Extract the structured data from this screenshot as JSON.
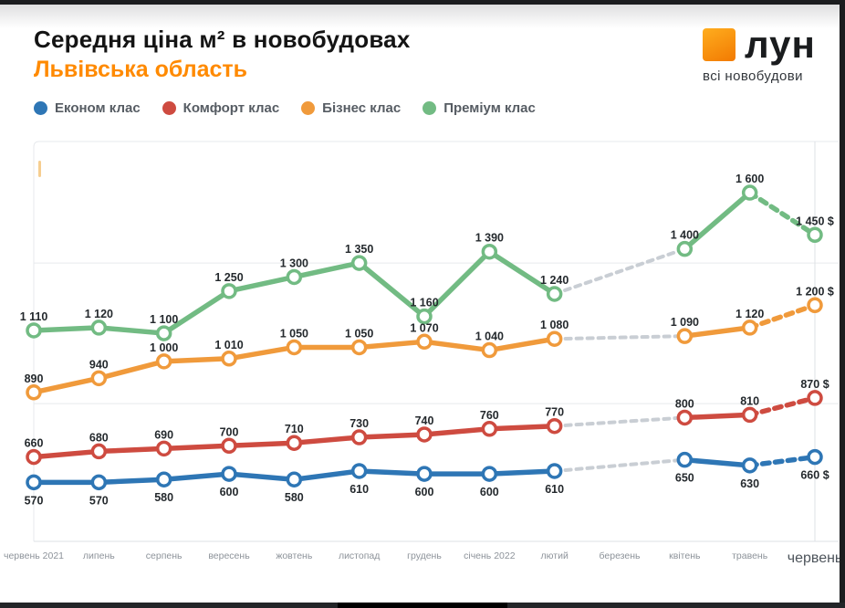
{
  "header": {
    "title": "Середня ціна м² в новобудовах",
    "subtitle": "Львівська область",
    "subtitle_color": "#FF8A00"
  },
  "logo": {
    "name": "лун",
    "tagline": "всі новобудови",
    "square_color_top": "#FFAD1E",
    "square_color_bottom": "#F27A02"
  },
  "chart_data": {
    "type": "line",
    "title": "Середня ціна м² в новобудовах",
    "subtitle": "Львівська область",
    "categories": [
      "червень 2021",
      "липень",
      "серпень",
      "вересень",
      "жовтень",
      "листопад",
      "грудень",
      "січень 2022",
      "лютий",
      "березень",
      "квітень",
      "травень",
      "червень"
    ],
    "x_last_label_emphasized": true,
    "ylim": [
      360,
      1782
    ],
    "gridline_values": [
      850,
      1350
    ],
    "grid_color": "#E7E9EC",
    "axis_color": "#DEE1E5",
    "missing_segment_color": "#C9CED4",
    "data_label_color": "#24292D",
    "x_label_color": "#8D939A",
    "x_last_label_color": "#4D545B",
    "legend_position": "top-left",
    "note_missing_month": "березень",
    "series": [
      {
        "name": "Економ клас",
        "color": "#2E76B5",
        "label_position": "below",
        "values": [
          570,
          570,
          580,
          600,
          580,
          610,
          600,
          600,
          610,
          null,
          650,
          630,
          660
        ],
        "last_value_suffix": " $"
      },
      {
        "name": "Комфорт клас",
        "color": "#CE4B40",
        "label_position": "above",
        "values": [
          660,
          680,
          690,
          700,
          710,
          730,
          740,
          760,
          770,
          null,
          800,
          810,
          870
        ],
        "last_value_suffix": " $"
      },
      {
        "name": "Бізнес клас",
        "color": "#F09A3B",
        "label_position": "above",
        "values": [
          890,
          940,
          1000,
          1010,
          1050,
          1050,
          1070,
          1040,
          1080,
          null,
          1090,
          1120,
          1200
        ],
        "last_value_suffix": " $"
      },
      {
        "name": "Преміум клас",
        "color": "#72BB83",
        "label_position": "above",
        "values": [
          1110,
          1120,
          1100,
          1250,
          1300,
          1350,
          1160,
          1390,
          1240,
          null,
          1400,
          1600,
          1450
        ],
        "last_value_suffix": " $"
      }
    ]
  }
}
